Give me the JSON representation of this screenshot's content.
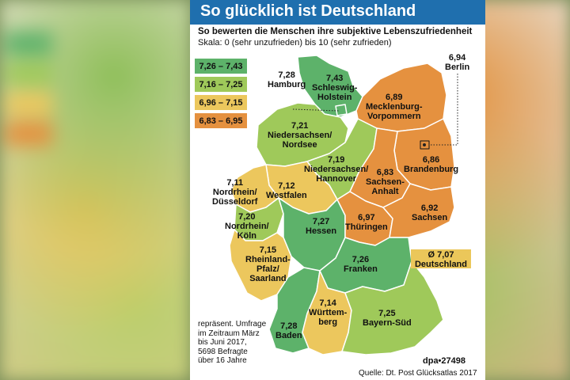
{
  "title": "So glücklich ist Deutschland",
  "subtitle": "So bewerten die Menschen ihre subjektive Lebenszufriedenheit",
  "scale": "Skala: 0 (sehr unzufrieden) bis 10 (sehr zufrieden)",
  "colors": {
    "dark_green": "#5db26a",
    "light_green": "#9fc95a",
    "yellow": "#ecc75d",
    "orange": "#e5913f",
    "header_blue": "#1f6fae"
  },
  "legend": [
    {
      "label": "7,26 – 7,43",
      "color": "#5db26a"
    },
    {
      "label": "7,16 – 7,25",
      "color": "#9fc95a"
    },
    {
      "label": "6,96 – 7,15",
      "color": "#ecc75d"
    },
    {
      "label": "6,83 – 6,95",
      "color": "#e5913f"
    }
  ],
  "regions": [
    {
      "value": "7,43",
      "name": "Schleswig-\nHolstein"
    },
    {
      "value": "7,28",
      "name": "Hamburg"
    },
    {
      "value": "6,94",
      "name": "Berlin"
    },
    {
      "value": "6,89",
      "name": "Mecklenburg-\nVorpommern"
    },
    {
      "value": "7,21",
      "name": "Niedersachsen/\nNordsee"
    },
    {
      "value": "7,19",
      "name": "Niedersachsen/\nHannover"
    },
    {
      "value": "6,86",
      "name": "Brandenburg"
    },
    {
      "value": "7,11",
      "name": "Nordrhein/\nDüsseldorf"
    },
    {
      "value": "7,12",
      "name": "Westfalen"
    },
    {
      "value": "6,83",
      "name": "Sachsen-\nAnhalt"
    },
    {
      "value": "7,20",
      "name": "Nordrhein/\nKöln"
    },
    {
      "value": "7,27",
      "name": "Hessen"
    },
    {
      "value": "6,97",
      "name": "Thüringen"
    },
    {
      "value": "6,92",
      "name": "Sachsen"
    },
    {
      "value": "7,15",
      "name": "Rheinland-\nPfalz/\nSaarland"
    },
    {
      "value": "7,26",
      "name": "Franken"
    },
    {
      "value": "7,14",
      "name": "Württem-\nberg"
    },
    {
      "value": "7,25",
      "name": "Bayern-Süd"
    },
    {
      "value": "7,28",
      "name": "Baden"
    }
  ],
  "average": {
    "value": "Ø 7,07",
    "name": "Deutschland"
  },
  "note": "repräsent. Umfrage\nim Zeitraum März\nbis Juni 2017,\n5698 Befragte\nüber 16 Jahre",
  "credit": "dpa•27498",
  "source": "Quelle: Dt. Post Glücksatlas 2017"
}
